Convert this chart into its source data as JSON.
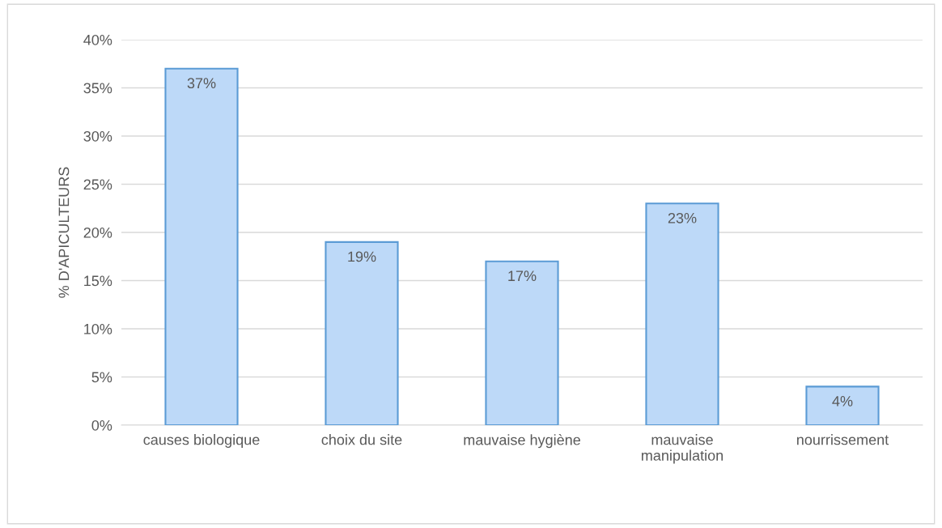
{
  "chart_data": {
    "type": "bar",
    "ylabel": "% D'APICULTEURS",
    "categories": [
      "causes biologique",
      "choix du site",
      "mauvaise hygiène",
      "mauvaise\nmanipulation",
      "nourrissement"
    ],
    "values": [
      37,
      19,
      17,
      23,
      4
    ],
    "value_labels": [
      "37%",
      "19%",
      "17%",
      "23%",
      "4%"
    ],
    "color": "#bdd9f8",
    "ylim": [
      0,
      40
    ],
    "yticks": [
      {
        "value": 0,
        "label": "0%"
      },
      {
        "value": 5,
        "label": "5%"
      },
      {
        "value": 10,
        "label": "10%"
      },
      {
        "value": 15,
        "label": "15%"
      },
      {
        "value": 20,
        "label": "20%"
      },
      {
        "value": 25,
        "label": "25%"
      },
      {
        "value": 30,
        "label": "30%"
      },
      {
        "value": 35,
        "label": "35%"
      },
      {
        "value": 40,
        "label": "40%"
      }
    ],
    "grid": "y",
    "legend": false
  }
}
